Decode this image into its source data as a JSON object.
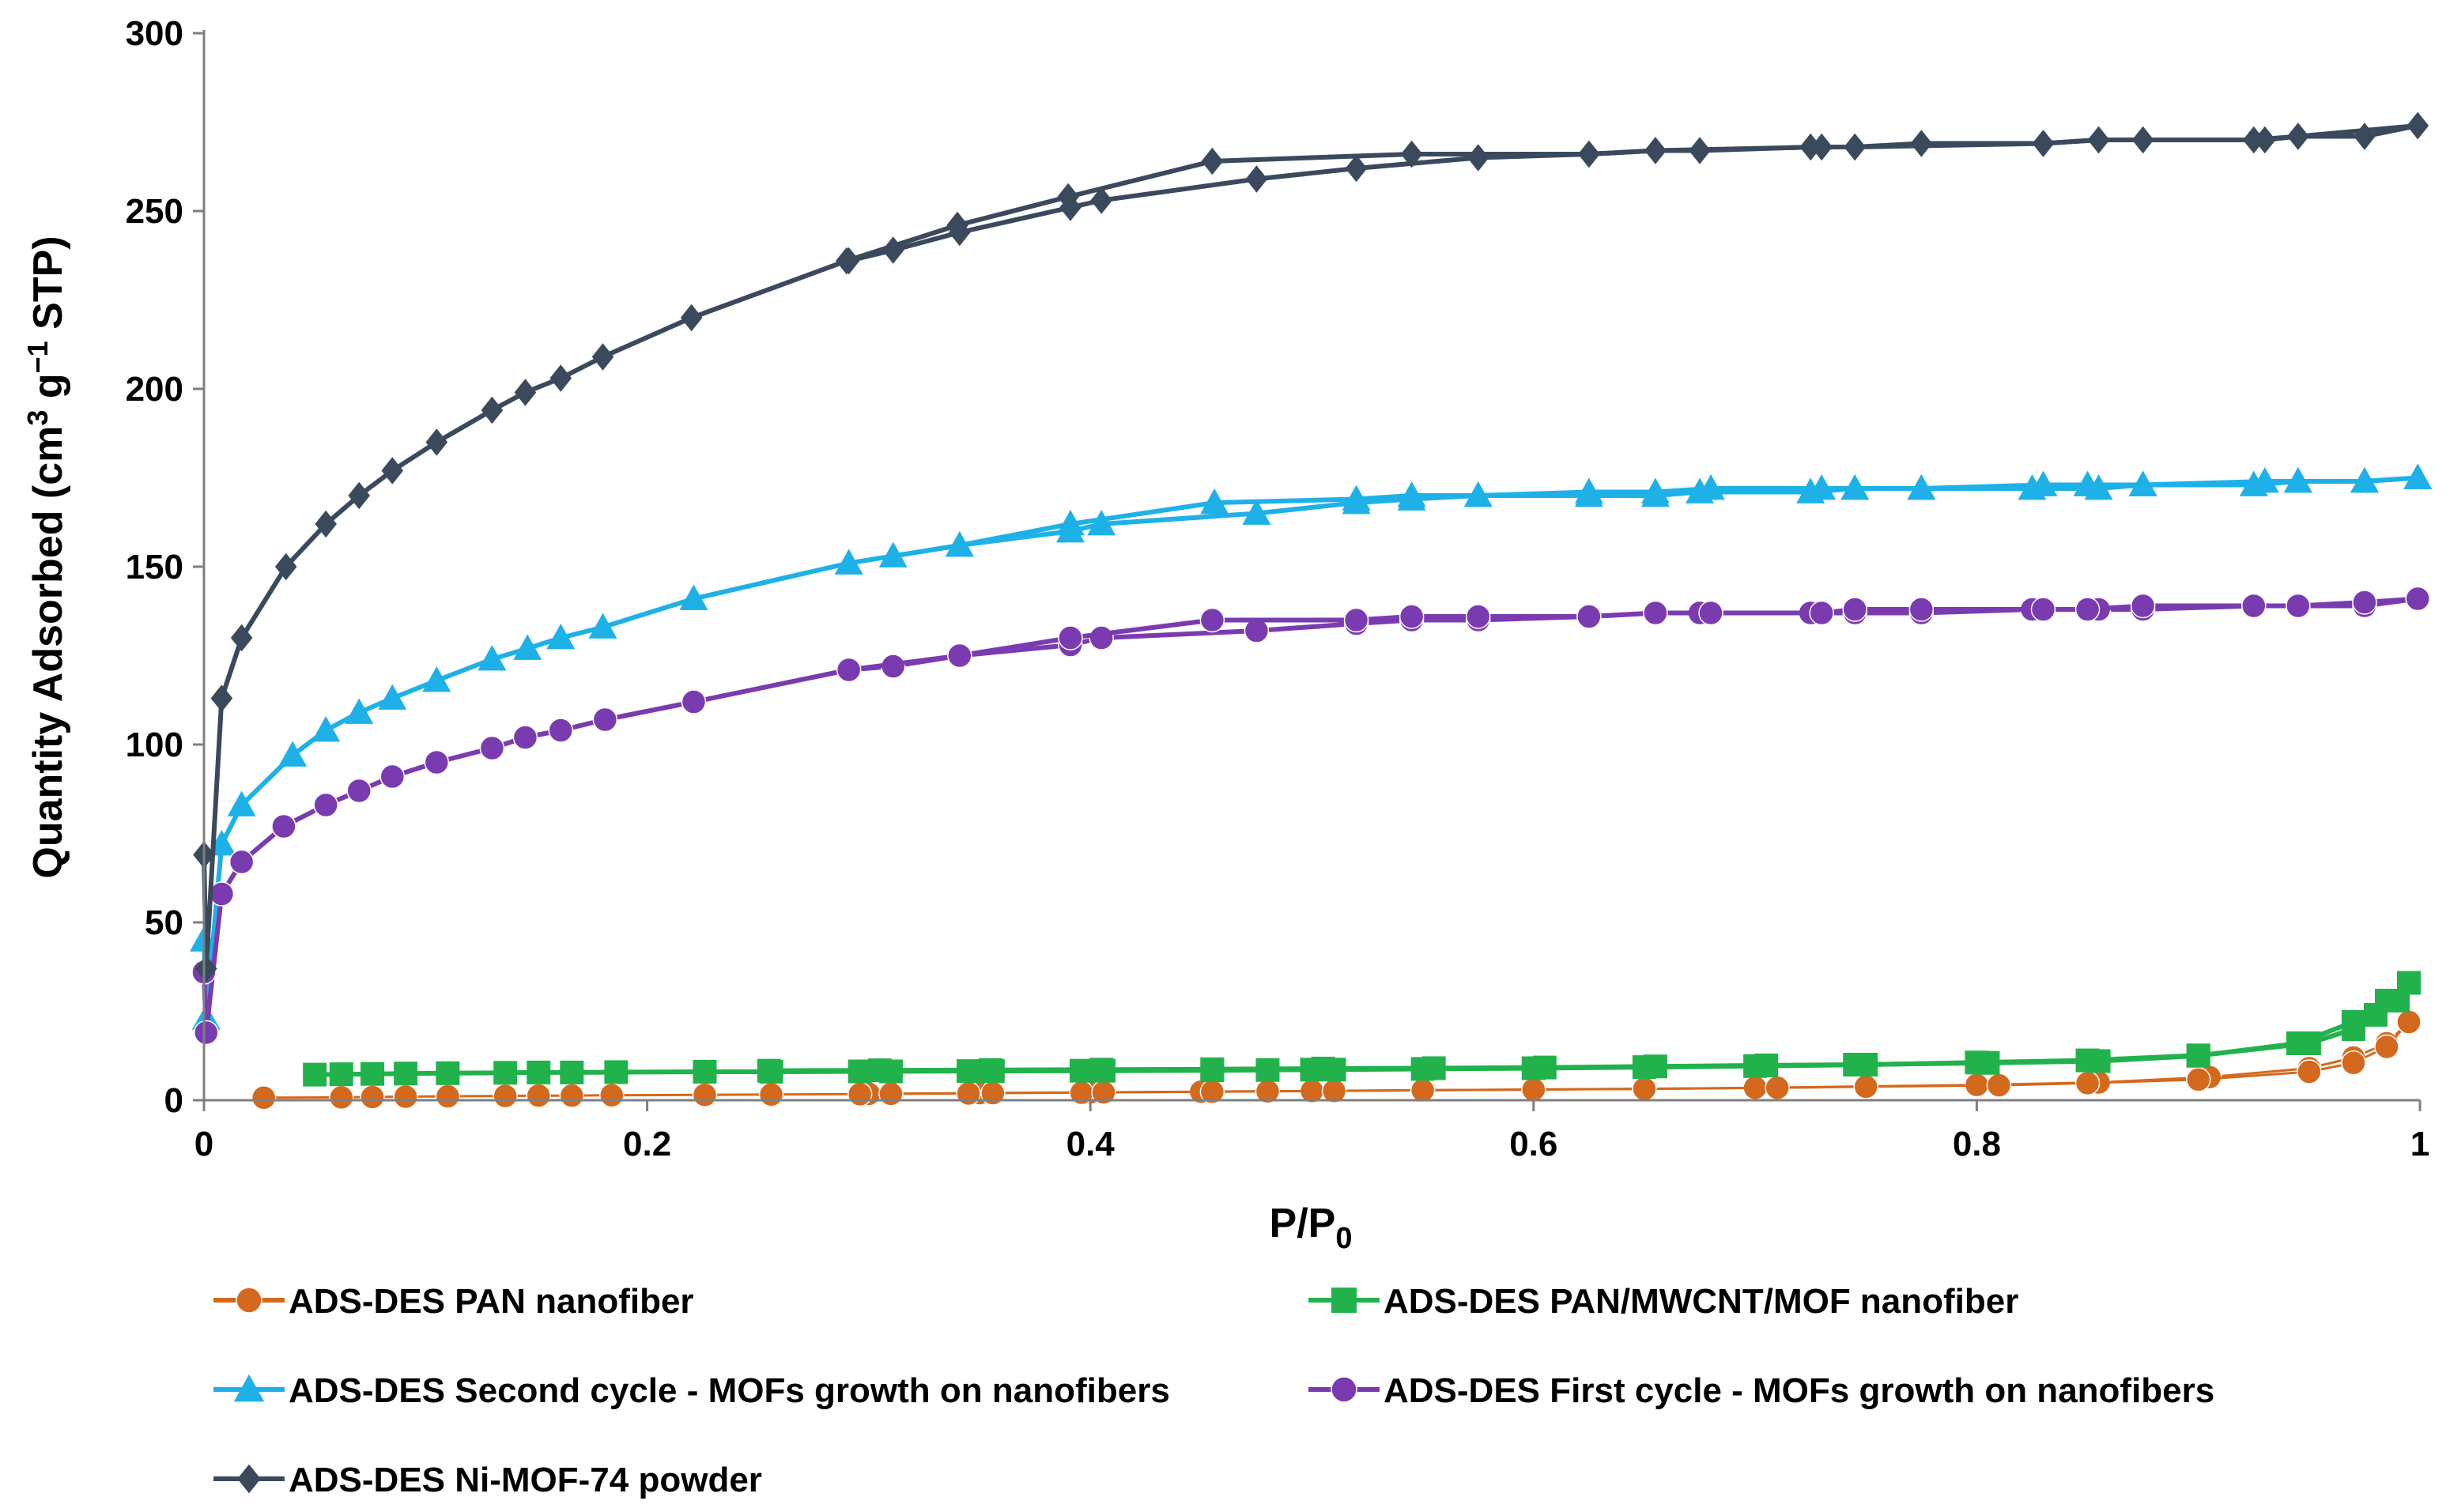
{
  "chart_data": {
    "type": "line",
    "title": "",
    "xlabel": "P/P",
    "xlabel_sub": "0",
    "ylabel_prefix": "Quantity Adsorbed (cm",
    "ylabel_sup1": "3",
    "ylabel_mid": " g",
    "ylabel_sup2": "−1",
    "ylabel_suffix": " STP)",
    "xlim": [
      0,
      1
    ],
    "ylim": [
      0,
      300
    ],
    "xticks": [
      0,
      0.2,
      0.4,
      0.6,
      0.8,
      1
    ],
    "xtick_labels": [
      "0",
      "0.2",
      "0.4",
      "0.6",
      "0.8",
      "1"
    ],
    "yticks": [
      0,
      50,
      100,
      150,
      200,
      250,
      300
    ],
    "ytick_labels": [
      "0",
      "50",
      "100",
      "150",
      "200",
      "250",
      "300"
    ],
    "grid": false,
    "legend_position": "bottom",
    "series": [
      {
        "name": "ADS-DES PAN nanofiber",
        "color": "#D4691E",
        "marker": "circle",
        "adsorption": {
          "x": [
            0.027,
            0.062,
            0.076,
            0.091,
            0.11,
            0.136,
            0.151,
            0.166,
            0.184,
            0.226,
            0.256,
            0.296,
            0.31,
            0.345,
            0.356,
            0.396,
            0.406,
            0.455,
            0.48,
            0.51,
            0.55,
            0.6,
            0.65,
            0.71,
            0.75,
            0.81,
            0.85,
            0.9,
            0.95,
            0.97,
            0.985,
            0.995
          ],
          "y": [
            0.7,
            0.8,
            0.9,
            1,
            1.1,
            1.2,
            1.3,
            1.3,
            1.4,
            1.5,
            1.6,
            1.7,
            1.8,
            1.9,
            2,
            2.1,
            2.2,
            2.4,
            2.5,
            2.6,
            2.8,
            3,
            3.2,
            3.5,
            3.8,
            4.2,
            4.8,
            5.8,
            8,
            10.5,
            15,
            22
          ]
        },
        "desorption": {
          "x": [
            0.995,
            0.985,
            0.97,
            0.95,
            0.905,
            0.855,
            0.8,
            0.75,
            0.7,
            0.65,
            0.6,
            0.55,
            0.5,
            0.45,
            0.4,
            0.35,
            0.3
          ],
          "y": [
            22,
            16,
            12,
            9,
            6.5,
            5,
            4.3,
            3.9,
            3.5,
            3.2,
            3,
            2.8,
            2.6,
            2.4,
            2.2,
            2,
            1.8
          ]
        }
      },
      {
        "name": "ADS-DES PAN/MWCNT/MOF nanofiber",
        "color": "#22B24C",
        "marker": "square",
        "adsorption": {
          "x": [
            0.05,
            0.062,
            0.076,
            0.091,
            0.11,
            0.136,
            0.151,
            0.166,
            0.186,
            0.226,
            0.256,
            0.296,
            0.31,
            0.345,
            0.356,
            0.396,
            0.406,
            0.455,
            0.48,
            0.5,
            0.51,
            0.55,
            0.6,
            0.65,
            0.7,
            0.75,
            0.8,
            0.85,
            0.9,
            0.95,
            0.97,
            0.98,
            0.99,
            0.995
          ],
          "y": [
            7.2,
            7.3,
            7.4,
            7.5,
            7.6,
            7.7,
            7.8,
            7.8,
            7.9,
            8,
            8,
            8.1,
            8.1,
            8.2,
            8.2,
            8.3,
            8.3,
            8.4,
            8.5,
            8.6,
            8.6,
            8.8,
            9,
            9.3,
            9.6,
            10,
            10.6,
            11.2,
            12.6,
            16,
            20,
            24,
            28,
            33
          ]
        },
        "desorption": {
          "x": [
            0.995,
            0.985,
            0.97,
            0.945,
            0.9,
            0.855,
            0.805,
            0.745,
            0.705,
            0.655,
            0.605,
            0.555,
            0.505,
            0.455,
            0.405,
            0.355,
            0.305,
            0.255
          ],
          "y": [
            33,
            28,
            22,
            16,
            12.5,
            11,
            10.5,
            10,
            9.8,
            9.5,
            9.2,
            9,
            8.9,
            8.7,
            8.6,
            8.5,
            8.4,
            8.3
          ]
        }
      },
      {
        "name": "ADS-DES Second cycle - MOFs growth on nanofibers",
        "color": "#1EB1E8",
        "marker": "triangle",
        "adsorption": {
          "x": [
            0,
            0.001,
            0.008,
            0.017,
            0.04,
            0.055,
            0.07,
            0.085,
            0.105,
            0.13,
            0.146,
            0.161,
            0.18,
            0.221,
            0.291,
            0.341,
            0.391,
            0.456,
            0.52,
            0.545,
            0.575,
            0.625,
            0.655,
            0.68,
            0.73,
            0.745,
            0.775,
            0.83,
            0.85,
            0.875,
            0.93,
            0.945,
            0.975,
            0.999
          ],
          "y": [
            45,
            23,
            72,
            83,
            97,
            104,
            109,
            113,
            118,
            124,
            127,
            130,
            133,
            141,
            151,
            156,
            162,
            168,
            169,
            170,
            170,
            171,
            171,
            172,
            172,
            172,
            172,
            173,
            173,
            173,
            174,
            174,
            174,
            175
          ]
        },
        "desorption": {
          "x": [
            0.999,
            0.975,
            0.945,
            0.925,
            0.875,
            0.855,
            0.825,
            0.775,
            0.745,
            0.725,
            0.675,
            0.655,
            0.625,
            0.575,
            0.545,
            0.52,
            0.475,
            0.405,
            0.391,
            0.341,
            0.311
          ],
          "y": [
            175,
            174,
            174,
            173,
            173,
            172,
            172,
            172,
            172,
            171,
            171,
            170,
            170,
            170,
            169,
            168,
            165,
            162,
            160,
            156,
            153
          ]
        }
      },
      {
        "name": "ADS-DES First cycle - MOFs growth on nanofibers",
        "color": "#7A3BB0",
        "marker": "circle",
        "adsorption": {
          "x": [
            0,
            0.001,
            0.008,
            0.017,
            0.036,
            0.055,
            0.07,
            0.085,
            0.105,
            0.13,
            0.145,
            0.161,
            0.181,
            0.221,
            0.291,
            0.341,
            0.391,
            0.455,
            0.52,
            0.545,
            0.575,
            0.625,
            0.655,
            0.68,
            0.73,
            0.745,
            0.775,
            0.83,
            0.85,
            0.875,
            0.925,
            0.945,
            0.975,
            0.999
          ],
          "y": [
            36,
            19,
            58,
            67,
            77,
            83,
            87,
            91,
            95,
            99,
            102,
            104,
            107,
            112,
            121,
            125,
            130,
            135,
            135,
            136,
            136,
            136,
            137,
            137,
            137,
            138,
            138,
            138,
            138,
            139,
            139,
            139,
            140,
            141
          ]
        },
        "desorption": {
          "x": [
            0.999,
            0.975,
            0.945,
            0.925,
            0.875,
            0.855,
            0.825,
            0.775,
            0.745,
            0.725,
            0.675,
            0.655,
            0.625,
            0.575,
            0.545,
            0.52,
            0.475,
            0.405,
            0.391,
            0.341,
            0.311,
            0.291
          ],
          "y": [
            141,
            139,
            139,
            139,
            138,
            138,
            138,
            137,
            137,
            137,
            137,
            137,
            136,
            135,
            135,
            134,
            132,
            130,
            128,
            125,
            122,
            121
          ]
        }
      },
      {
        "name": "ADS-DES Ni-MOF-74 powder",
        "color": "#3A4A5C",
        "marker": "diamond",
        "adsorption": {
          "x": [
            0,
            0.001,
            0.008,
            0.017,
            0.037,
            0.055,
            0.07,
            0.085,
            0.105,
            0.13,
            0.145,
            0.161,
            0.18,
            0.22,
            0.29,
            0.34,
            0.39,
            0.455,
            0.545,
            0.625,
            0.655,
            0.73,
            0.745,
            0.83,
            0.855,
            0.93,
            0.945,
            0.999
          ],
          "y": [
            69,
            37,
            113,
            130,
            150,
            162,
            170,
            177,
            185,
            194,
            199,
            203,
            209,
            220,
            236,
            246,
            254,
            264,
            266,
            266,
            267,
            268,
            268,
            269,
            270,
            270,
            271,
            274
          ]
        },
        "desorption": {
          "x": [
            0.999,
            0.975,
            0.945,
            0.925,
            0.875,
            0.855,
            0.83,
            0.775,
            0.745,
            0.725,
            0.675,
            0.655,
            0.625,
            0.575,
            0.52,
            0.475,
            0.405,
            0.391,
            0.341,
            0.311,
            0.291
          ],
          "y": [
            274,
            271,
            271,
            270,
            270,
            270,
            269,
            269,
            268,
            268,
            267,
            267,
            266,
            265,
            262,
            259,
            253,
            251,
            244,
            239,
            236
          ]
        }
      }
    ]
  }
}
